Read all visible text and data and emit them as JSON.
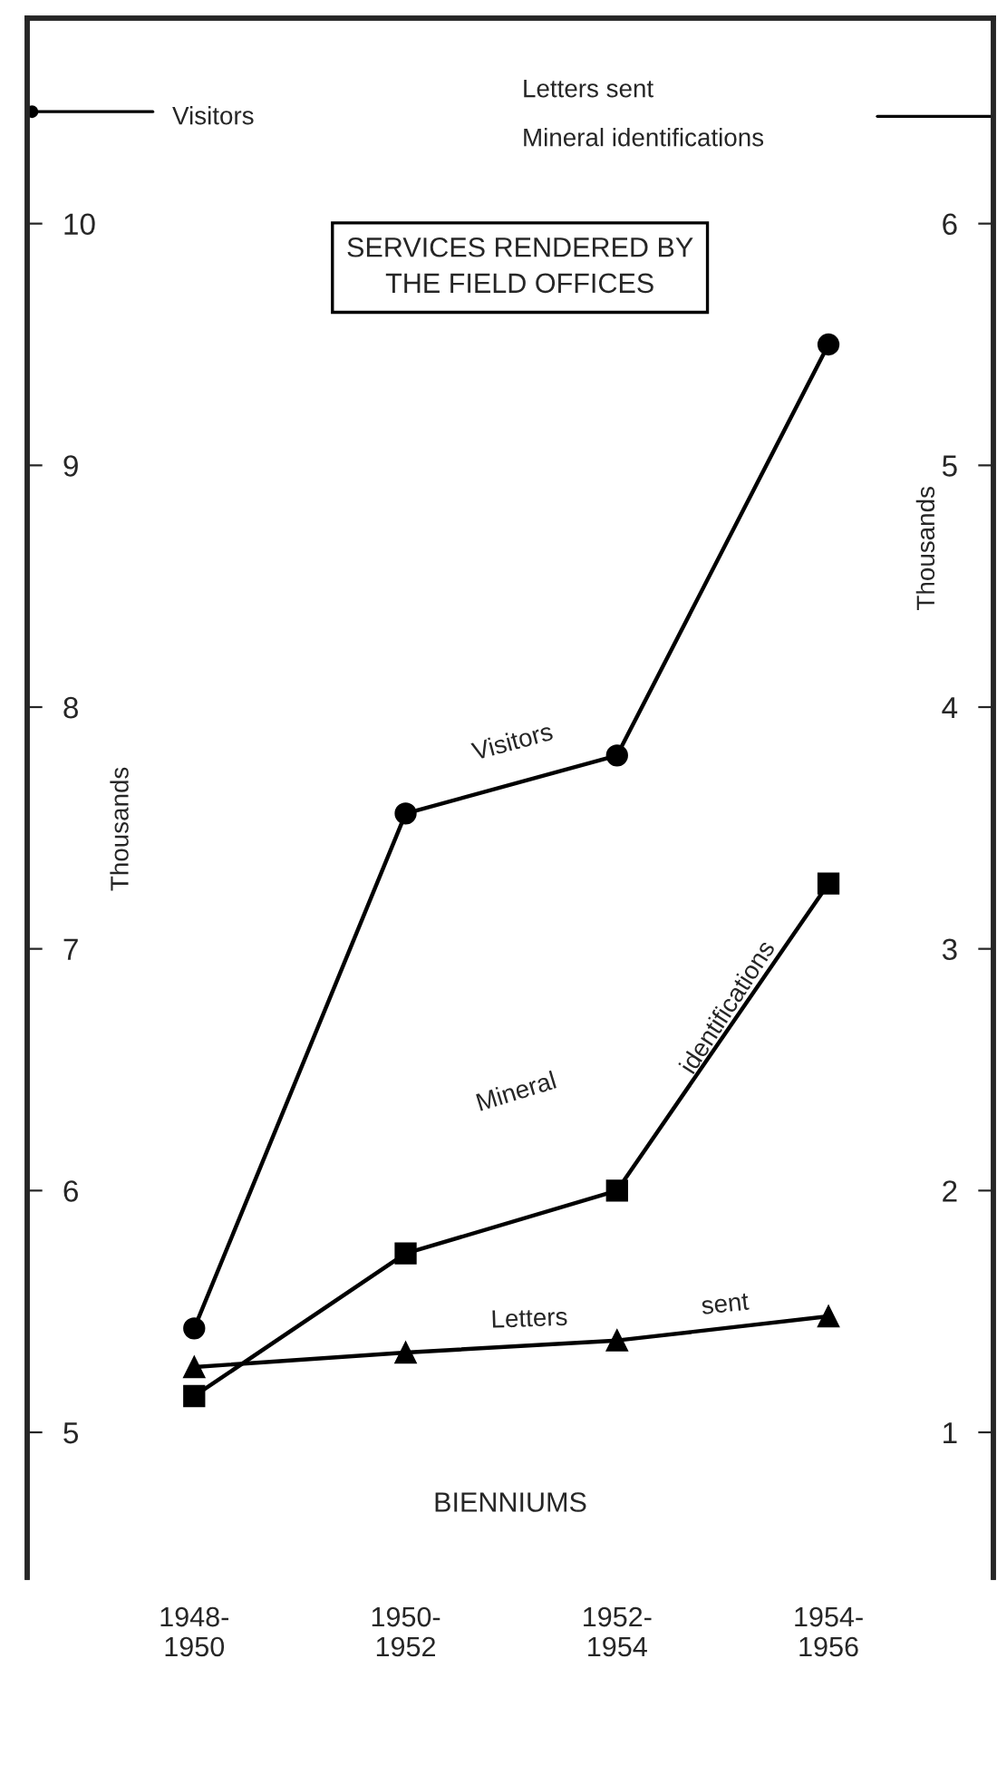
{
  "chart_data": {
    "type": "line",
    "title": "SERVICES RENDERED BY\nTHE FIELD OFFICES",
    "xlabel": "BIENNIUMS",
    "ylabel": "Thousands",
    "y2label": "Thousands",
    "categories": [
      "1948-\n1950",
      "1950-\n1952",
      "1952-\n1954",
      "1954-\n1956"
    ],
    "series": [
      {
        "color": "#000000",
        "marker": "circle",
        "values": [
          5.43,
          7.56,
          7.8,
          9.5
        ]
      },
      {
        "color": "#000000",
        "marker": "triangle",
        "axis": "y2",
        "values": [
          1.27,
          1.33,
          1.38,
          1.48
        ]
      },
      {
        "color": "#000000",
        "marker": "square",
        "axis": "y2",
        "values": [
          1.15,
          1.74,
          2.0,
          3.27
        ]
      }
    ],
    "annotations": [
      "Visitors",
      "Letters sent",
      "Mineral identifications",
      "Visitors",
      "Mineral",
      "identifications",
      "Letters",
      "sent"
    ],
    "ylim": [
      4.4,
      10.85
    ],
    "yticks": [
      5,
      6,
      7,
      8,
      9,
      10
    ],
    "y2lim": [
      0.4,
      6.85
    ],
    "y2ticks": [
      1,
      2,
      3,
      4,
      5,
      6
    ],
    "grid": false
  }
}
